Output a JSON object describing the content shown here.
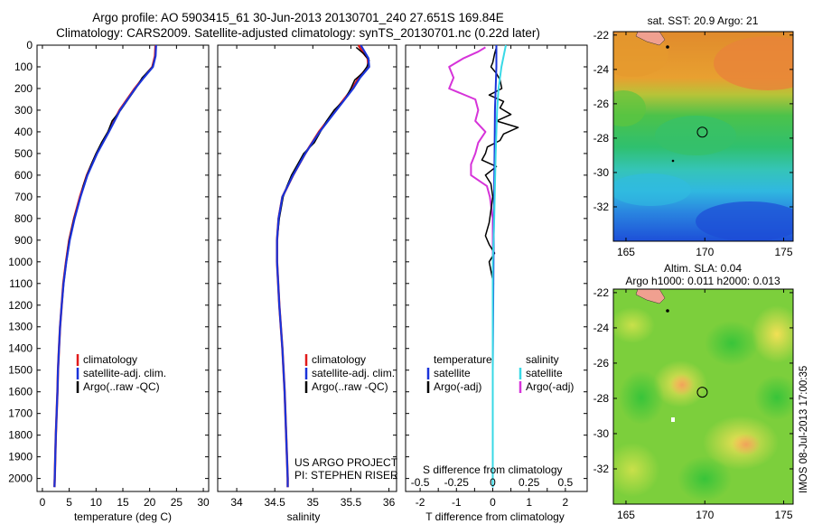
{
  "header": {
    "title_line1": "Argo profile: AO 5903415_61 30-Jun-2013 20130701_240 27.651S 169.84E",
    "title_line2": "Climatology: CARS2009. Satellite-adjusted climatology: synTS_20130701.nc (0.22d later)"
  },
  "colors": {
    "climatology": "#e11a1a",
    "satellite": "#1a33d9",
    "argo": "#000000",
    "s_satellite": "#39d9e6",
    "s_argo": "#d633d9"
  },
  "chart_data": [
    {
      "id": "temperature",
      "type": "line",
      "xlabel": "temperature (deg C)",
      "ylabel": "",
      "xlim": [
        -1,
        31
      ],
      "ylim": [
        2060,
        0
      ],
      "xticks": [
        "0",
        "5",
        "10",
        "15",
        "20",
        "25",
        "30"
      ],
      "xtick_values": [
        0,
        5,
        10,
        15,
        20,
        25,
        30
      ],
      "yticks": [
        "0",
        "100",
        "200",
        "300",
        "400",
        "500",
        "600",
        "700",
        "800",
        "900",
        "1000",
        "1100",
        "1200",
        "1300",
        "1400",
        "1500",
        "1600",
        "1700",
        "1800",
        "1900",
        "2000"
      ],
      "ytick_values": [
        0,
        100,
        200,
        300,
        400,
        500,
        600,
        700,
        800,
        900,
        1000,
        1100,
        1200,
        1300,
        1400,
        1500,
        1600,
        1700,
        1800,
        1900,
        2000
      ],
      "legend": [
        "climatology",
        "satellite-adj. clim.",
        "Argo(..raw -QC)"
      ],
      "series": [
        {
          "name": "climatology",
          "depth": [
            0,
            50,
            100,
            150,
            200,
            300,
            400,
            500,
            600,
            700,
            800,
            900,
            1000,
            1100,
            1200,
            1300,
            1400,
            1500,
            1600,
            1700,
            1800,
            1900,
            2000,
            2040
          ],
          "values": [
            21.1,
            21.0,
            20.5,
            18.8,
            17.2,
            14.4,
            12.3,
            10.1,
            8.3,
            7.0,
            5.9,
            5.0,
            4.4,
            3.9,
            3.6,
            3.3,
            3.1,
            2.9,
            2.8,
            2.65,
            2.5,
            2.4,
            2.3,
            2.25
          ]
        },
        {
          "name": "satellite-adj. clim.",
          "depth": [
            0,
            50,
            100,
            150,
            200,
            300,
            400,
            500,
            600,
            700,
            800,
            900,
            1000,
            1100,
            1200,
            1300,
            1400,
            1500,
            1600,
            1700,
            1800,
            1900,
            2000,
            2040
          ],
          "values": [
            21.2,
            21.1,
            20.6,
            18.9,
            17.3,
            14.5,
            12.4,
            10.2,
            8.4,
            7.1,
            6.0,
            5.1,
            4.45,
            3.95,
            3.6,
            3.3,
            3.1,
            2.9,
            2.8,
            2.65,
            2.5,
            2.4,
            2.3,
            2.25
          ]
        },
        {
          "name": "Argo(..raw -QC)",
          "depth": [
            10,
            50,
            100,
            150,
            200,
            250,
            300,
            350,
            400,
            450,
            500,
            550,
            600,
            650,
            700,
            800,
            900,
            1000,
            1100,
            1200,
            1300,
            1400,
            1500,
            1600,
            1700,
            1800,
            1900,
            2000
          ],
          "values": [
            21.2,
            21.1,
            20.5,
            18.6,
            17.4,
            16.0,
            14.6,
            13.0,
            12.2,
            11.0,
            10.0,
            9.1,
            8.3,
            7.6,
            7.1,
            5.9,
            5.0,
            4.4,
            3.9,
            3.6,
            3.3,
            3.1,
            2.9,
            2.8,
            2.65,
            2.5,
            2.4,
            2.3
          ]
        }
      ]
    },
    {
      "id": "salinity",
      "type": "line",
      "xlabel": "salinity",
      "xlim": [
        33.75,
        36.1
      ],
      "ylim": [
        2060,
        0
      ],
      "xticks": [
        "34",
        "34.5",
        "35",
        "35.5",
        "36"
      ],
      "xtick_values": [
        34,
        34.5,
        35,
        35.5,
        36
      ],
      "legend": [
        "climatology",
        "satellite-adj. clim.",
        "Argo(..raw -QC)"
      ],
      "annotation": [
        "US ARGO PROJECT",
        "PI: STEPHEN RISER"
      ],
      "series": [
        {
          "name": "climatology",
          "depth": [
            0,
            30,
            60,
            100,
            150,
            200,
            300,
            400,
            500,
            600,
            700,
            800,
            900,
            1000,
            1200,
            1400,
            1600,
            1800,
            2000,
            2040
          ],
          "values": [
            35.6,
            35.65,
            35.72,
            35.73,
            35.6,
            35.52,
            35.3,
            35.08,
            34.9,
            34.74,
            34.6,
            34.55,
            34.53,
            34.53,
            34.56,
            34.6,
            34.63,
            34.65,
            34.67,
            34.67
          ]
        },
        {
          "name": "satellite-adj. clim.",
          "depth": [
            0,
            30,
            60,
            100,
            150,
            200,
            300,
            400,
            500,
            600,
            700,
            800,
            900,
            1000,
            1200,
            1400,
            1600,
            1800,
            2000,
            2040
          ],
          "values": [
            35.63,
            35.68,
            35.73,
            35.74,
            35.62,
            35.53,
            35.31,
            35.09,
            34.9,
            34.74,
            34.6,
            34.55,
            34.53,
            34.53,
            34.56,
            34.6,
            34.63,
            34.65,
            34.67,
            34.67
          ]
        },
        {
          "name": "Argo(..raw -QC)",
          "depth": [
            10,
            40,
            70,
            100,
            130,
            160,
            200,
            250,
            300,
            350,
            400,
            450,
            500,
            550,
            600,
            650,
            700,
            800,
            900,
            1000,
            1200,
            1400,
            1600,
            1800,
            2000
          ],
          "values": [
            35.57,
            35.67,
            35.74,
            35.71,
            35.65,
            35.55,
            35.5,
            35.42,
            35.28,
            35.18,
            35.1,
            35.02,
            34.88,
            34.8,
            34.72,
            34.66,
            34.61,
            34.56,
            34.53,
            34.53,
            34.56,
            34.6,
            34.63,
            34.65,
            34.67
          ]
        }
      ]
    },
    {
      "id": "difference",
      "type": "line",
      "xlabel": "T difference from climatology",
      "xlabel_top": "S difference from climatology",
      "xlim": [
        -2.4,
        2.6
      ],
      "ylim": [
        2060,
        0
      ],
      "xticks": [
        "-2",
        "-1.5",
        "-1",
        "-0.5",
        "0",
        "0.5",
        "1",
        "1.5",
        "2"
      ],
      "xtick_labels_visible": [
        "-2",
        "-1",
        "0",
        "1",
        "2"
      ],
      "xtick_values": [
        -2,
        -1.5,
        -1,
        -0.5,
        0,
        0.5,
        1,
        1.5,
        2
      ],
      "s_ticks": [
        "-0.5",
        "-0.25",
        "0",
        "0.25",
        "0.5"
      ],
      "legend_temperature_title": "temperature",
      "legend_salinity_title": "salinity",
      "legend_temperature": [
        "satellite",
        "Argo(-adj)"
      ],
      "legend_salinity": [
        "satellite",
        "Argo(-adj)"
      ],
      "series": [
        {
          "name": "T satellite",
          "depth": [
            0,
            100,
            200,
            300,
            500,
            800,
            1000,
            1500,
            2040
          ],
          "values": [
            0.1,
            0.1,
            0.08,
            0.06,
            0.05,
            0.03,
            0.02,
            0.0,
            0.0
          ]
        },
        {
          "name": "T Argo(-adj)",
          "depth": [
            10,
            40,
            80,
            100,
            130,
            160,
            200,
            230,
            260,
            290,
            320,
            350,
            380,
            410,
            440,
            470,
            500,
            530,
            560,
            600,
            640,
            700,
            760,
            820,
            880,
            920,
            960,
            1000,
            1100,
            1200,
            1400,
            1600,
            1800,
            2000
          ],
          "values": [
            0.1,
            0.05,
            0.0,
            -0.05,
            0.1,
            0.2,
            0.25,
            -0.1,
            0.3,
            0.2,
            0.5,
            0.1,
            0.7,
            0.3,
            0.2,
            -0.15,
            -0.2,
            -0.3,
            0.1,
            -0.2,
            -0.05,
            0.0,
            -0.05,
            -0.1,
            -0.2,
            -0.1,
            0.05,
            -0.1,
            0.02,
            0.0,
            0.0,
            0.0,
            0.0,
            0.0
          ]
        },
        {
          "name": "S satellite",
          "depth": [
            0,
            100,
            200,
            300,
            500,
            800,
            1000,
            1500,
            2040
          ],
          "values": [
            0.09,
            0.06,
            0.04,
            0.03,
            0.02,
            0.01,
            0.0,
            0.0,
            0.0
          ]
        },
        {
          "name": "S Argo(-adj)",
          "depth": [
            10,
            30,
            60,
            100,
            150,
            200,
            250,
            300,
            350,
            400,
            450,
            500,
            550,
            600,
            650,
            700,
            800,
            900,
            1000
          ],
          "values": [
            -0.05,
            -0.1,
            -0.2,
            -0.3,
            -0.27,
            -0.3,
            -0.12,
            -0.1,
            -0.12,
            -0.05,
            -0.1,
            -0.12,
            -0.15,
            -0.15,
            -0.04,
            -0.02,
            0.0,
            0.0,
            0.0
          ]
        }
      ]
    },
    {
      "id": "sst_map",
      "type": "heatmap",
      "title": "sat. SST: 20.9 Argo: 21",
      "xlim": [
        164.2,
        175.6
      ],
      "ylim": [
        -34.0,
        -21.8
      ],
      "xticks": [
        "165",
        "170",
        "175"
      ],
      "xtick_values": [
        165,
        170,
        175
      ],
      "yticks": [
        "-22",
        "-24",
        "-26",
        "-28",
        "-30",
        "-32"
      ],
      "ytick_values": [
        -22,
        -24,
        -26,
        -28,
        -30,
        -32
      ],
      "marker": {
        "lon": 169.84,
        "lat": -27.651
      }
    },
    {
      "id": "sla_map",
      "type": "heatmap",
      "title_line1": "Altim. SLA: 0.04",
      "title_line2": "Argo h1000: 0.011 h2000: 0.013",
      "xlim": [
        164.2,
        175.6
      ],
      "ylim": [
        -34.0,
        -21.8
      ],
      "xticks": [
        "165",
        "170",
        "175"
      ],
      "xtick_values": [
        165,
        170,
        175
      ],
      "yticks": [
        "-22",
        "-24",
        "-26",
        "-28",
        "-30",
        "-32"
      ],
      "ytick_values": [
        -22,
        -24,
        -26,
        -28,
        -30,
        -32
      ],
      "marker": {
        "lon": 169.84,
        "lat": -27.651
      }
    }
  ],
  "stamp": "IMOS 08-Jul-2013 17:00:35"
}
